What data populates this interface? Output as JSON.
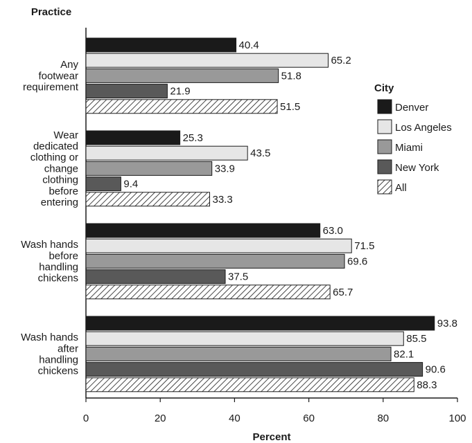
{
  "chart_data": {
    "type": "bar",
    "orientation": "horizontal",
    "ylabel": "Practice",
    "xlabel": "Percent",
    "xlim": [
      0,
      100
    ],
    "xticks": [
      0,
      20,
      40,
      60,
      80,
      100
    ],
    "grid": false,
    "categories": [
      [
        "Any",
        "footwear",
        "requirement"
      ],
      [
        "Wear",
        "dedicated",
        "clothing or",
        "change",
        "clothing",
        "before",
        "entering"
      ],
      [
        "Wash hands",
        "before",
        "handling",
        "chickens"
      ],
      [
        "Wash hands",
        "after",
        "handling",
        "chickens"
      ]
    ],
    "legend": {
      "title": "City",
      "position": "right"
    },
    "series": [
      {
        "name": "Denver",
        "values": [
          40.4,
          25.3,
          63.0,
          93.8
        ],
        "color": "#1a1a1a",
        "pattern": "solid"
      },
      {
        "name": "Los Angeles",
        "values": [
          65.2,
          43.5,
          71.5,
          85.5
        ],
        "color": "#e6e6e6",
        "pattern": "solid"
      },
      {
        "name": "Miami",
        "values": [
          51.8,
          33.9,
          69.6,
          82.1
        ],
        "color": "#999999",
        "pattern": "solid"
      },
      {
        "name": "New York",
        "values": [
          21.9,
          9.4,
          37.5,
          90.6
        ],
        "color": "#595959",
        "pattern": "solid"
      },
      {
        "name": "All",
        "values": [
          51.5,
          33.3,
          65.7,
          88.3
        ],
        "color": "#ffffff",
        "pattern": "hatch"
      }
    ]
  }
}
